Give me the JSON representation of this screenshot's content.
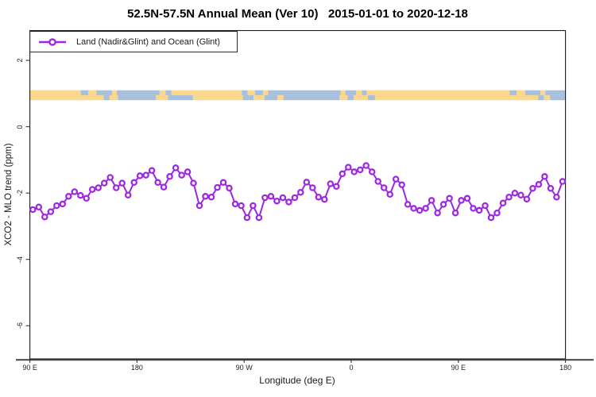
{
  "title": "52.5N-57.5N Annual Mean (Ver 10)   2015-01-01 to 2020-12-18",
  "legend": {
    "label": "Land (Nadir&Glint) and Ocean (Glint)"
  },
  "axes": {
    "x": {
      "label": "Longitude (deg E)",
      "ticks": [
        {
          "deg": 90,
          "label": "90 E"
        },
        {
          "deg": 180,
          "label": "180"
        },
        {
          "deg": 270,
          "label": "90 W"
        },
        {
          "deg": 360,
          "label": "0"
        },
        {
          "deg": 450,
          "label": "90 E"
        },
        {
          "deg": 540,
          "label": "180"
        }
      ]
    },
    "y": {
      "label": "XCO2 - MLO trend (ppm)",
      "ticks": [
        {
          "value": 2,
          "label": "2"
        },
        {
          "value": 0,
          "label": "0"
        },
        {
          "value": -2,
          "label": "-2"
        },
        {
          "value": -4,
          "label": "-4"
        },
        {
          "value": -6,
          "label": "-6"
        }
      ]
    }
  },
  "colors": {
    "series": "#9D28DF",
    "marker_fill": "#FFFFFF",
    "plot_border": "#1A1A1A",
    "axis_line": "#4D4D4D",
    "tick": "#333333",
    "land": "#FAD78B",
    "ocean": "#A9C0DC"
  },
  "chart_data": {
    "type": "line",
    "title": "52.5N-57.5N Annual Mean (Ver 10)   2015-01-01 to 2020-12-18",
    "xlabel": "Longitude (deg E)",
    "ylabel": "XCO2 - MLO trend (ppm)",
    "xlim": [
      90,
      540
    ],
    "ylim": [
      -7.0,
      2.9
    ],
    "grid": false,
    "legend_position": "top-left",
    "x_start_deg": 92.5,
    "x_step_deg": 5,
    "series": [
      {
        "name": "Land (Nadir&Glint) and Ocean (Glint)",
        "color": "#9D28DF",
        "marker": "open-circle",
        "values": [
          -2.5,
          -2.42,
          -2.72,
          -2.56,
          -2.38,
          -2.33,
          -2.1,
          -1.96,
          -2.07,
          -2.16,
          -1.89,
          -1.84,
          -1.7,
          -1.53,
          -1.84,
          -1.7,
          -2.06,
          -1.68,
          -1.48,
          -1.46,
          -1.32,
          -1.68,
          -1.82,
          -1.5,
          -1.24,
          -1.46,
          -1.36,
          -1.7,
          -2.38,
          -2.1,
          -2.12,
          -1.83,
          -1.68,
          -1.85,
          -2.33,
          -2.38,
          -2.74,
          -2.38,
          -2.74,
          -2.14,
          -2.1,
          -2.24,
          -2.14,
          -2.27,
          -2.14,
          -1.98,
          -1.67,
          -1.84,
          -2.12,
          -2.19,
          -1.72,
          -1.8,
          -1.42,
          -1.22,
          -1.36,
          -1.3,
          -1.17,
          -1.36,
          -1.65,
          -1.84,
          -2.04,
          -1.58,
          -1.75,
          -2.34,
          -2.46,
          -2.52,
          -2.46,
          -2.22,
          -2.6,
          -2.34,
          -2.16,
          -2.6,
          -2.22,
          -2.16,
          -2.46,
          -2.52,
          -2.38,
          -2.74,
          -2.6,
          -2.3,
          -2.12,
          -2.0,
          -2.06,
          -2.18,
          -1.86,
          -1.74,
          -1.5,
          -1.86,
          -2.12,
          -1.65
        ]
      }
    ],
    "map_strip": {
      "land_color": "#FAD78B",
      "ocean_color": "#A9C0DC",
      "band_value_range": [
        0.8,
        1.1
      ],
      "rows": [
        {
          "segments": [
            [
              90,
              133,
              "land"
            ],
            [
              133,
              139,
              "ocean"
            ],
            [
              139,
              146,
              "land"
            ],
            [
              146,
              159,
              "ocean"
            ],
            [
              159,
              163,
              "land"
            ],
            [
              163,
              199,
              "ocean"
            ],
            [
              199,
              204,
              "land"
            ],
            [
              204,
              209,
              "ocean"
            ],
            [
              209,
              268,
              "land"
            ],
            [
              268,
              273,
              "ocean"
            ],
            [
              273,
              279,
              "land"
            ],
            [
              279,
              286,
              "ocean"
            ],
            [
              286,
              290,
              "land"
            ],
            [
              290,
              351,
              "ocean"
            ],
            [
              351,
              355,
              "land"
            ],
            [
              355,
              364,
              "ocean"
            ],
            [
              364,
              369,
              "land"
            ],
            [
              369,
              373,
              "ocean"
            ],
            [
              373,
              493,
              "land"
            ],
            [
              493,
              499,
              "ocean"
            ],
            [
              499,
              506,
              "land"
            ],
            [
              506,
              519,
              "ocean"
            ],
            [
              519,
              523,
              "land"
            ],
            [
              523,
              540,
              "ocean"
            ]
          ]
        },
        {
          "segments": [
            [
              90,
              152,
              "land"
            ],
            [
              152,
              157,
              "ocean"
            ],
            [
              157,
              164,
              "land"
            ],
            [
              164,
              196,
              "ocean"
            ],
            [
              196,
              206,
              "land"
            ],
            [
              206,
              227,
              "ocean"
            ],
            [
              227,
              269,
              "land"
            ],
            [
              269,
              278,
              "ocean"
            ],
            [
              278,
              287,
              "land"
            ],
            [
              287,
              298,
              "ocean"
            ],
            [
              298,
              303,
              "land"
            ],
            [
              303,
              350,
              "ocean"
            ],
            [
              350,
              357,
              "land"
            ],
            [
              357,
              362,
              "ocean"
            ],
            [
              362,
              374,
              "land"
            ],
            [
              374,
              380,
              "ocean"
            ],
            [
              380,
              517,
              "land"
            ],
            [
              517,
              522,
              "ocean"
            ],
            [
              522,
              527,
              "land"
            ],
            [
              527,
              540,
              "ocean"
            ]
          ]
        }
      ]
    }
  }
}
